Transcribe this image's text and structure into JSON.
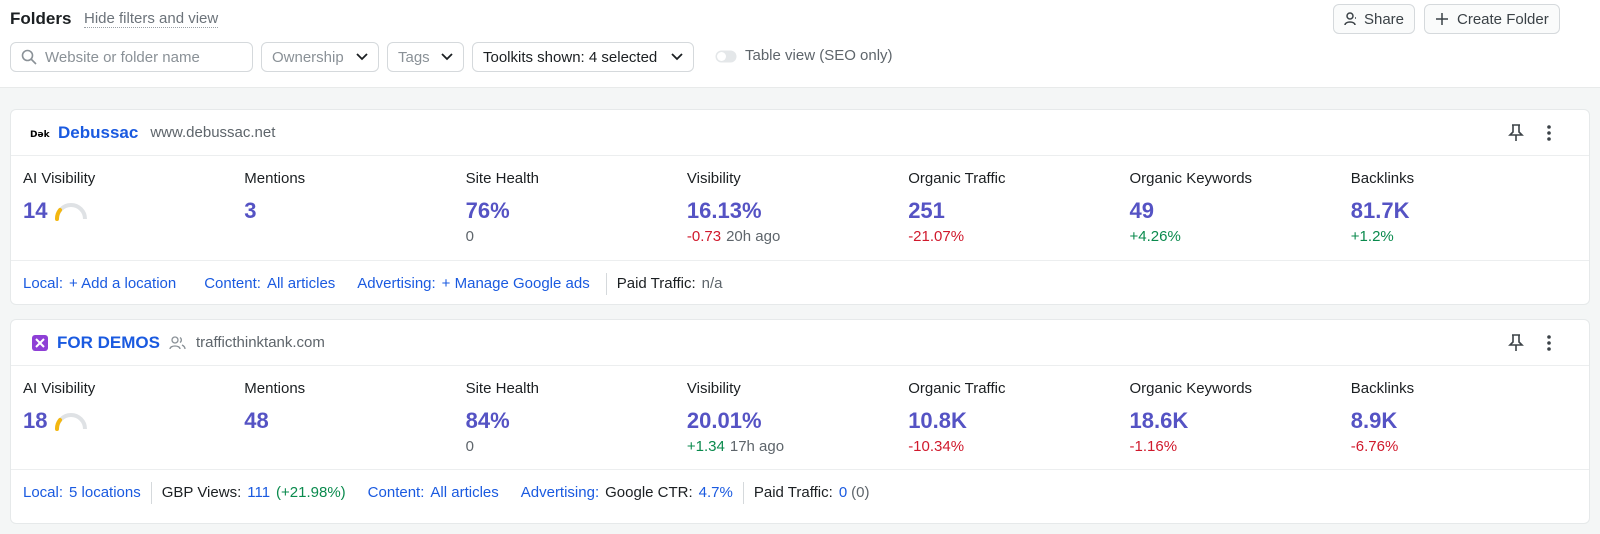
{
  "header": {
    "title": "Folders",
    "toggle_link": "Hide filters and view",
    "share": "Share",
    "create": "Create Folder"
  },
  "filters": {
    "search_placeholder": "Website or folder name",
    "ownership": "Ownership",
    "tags": "Tags",
    "toolkits": "Toolkits shown: 4 selected",
    "table_view": "Table view (SEO only)"
  },
  "folders": [
    {
      "name": "Debussac",
      "domain": "www.debussac.net",
      "metrics": [
        {
          "label": "AI Visibility",
          "value": "14"
        },
        {
          "label": "Mentions",
          "value": "3"
        },
        {
          "label": "Site Health",
          "value": "76%",
          "sub": "0"
        },
        {
          "label": "Visibility",
          "value": "16.13%",
          "change": "-0.73",
          "note": "20h ago"
        },
        {
          "label": "Organic Traffic",
          "value": "251",
          "change": "-21.07%"
        },
        {
          "label": "Organic Keywords",
          "value": "49",
          "change": "+4.26%"
        },
        {
          "label": "Backlinks",
          "value": "81.7K",
          "change": "+1.2%"
        }
      ],
      "footer": {
        "local_label": "Local:",
        "local": "Add a location",
        "content_label": "Content:",
        "content": "All articles",
        "advertising_label": "Advertising:",
        "advertising": "Manage Google ads",
        "paid_label": "Paid Traffic:",
        "paid": "n/a"
      }
    },
    {
      "name": "FOR DEMOS",
      "domain": "trafficthinktank.com",
      "metrics": [
        {
          "label": "AI Visibility",
          "value": "18"
        },
        {
          "label": "Mentions",
          "value": "48"
        },
        {
          "label": "Site Health",
          "value": "84%",
          "sub": "0"
        },
        {
          "label": "Visibility",
          "value": "20.01%",
          "change": "+1.34",
          "note": "17h ago"
        },
        {
          "label": "Organic Traffic",
          "value": "10.8K",
          "change": "-10.34%"
        },
        {
          "label": "Organic Keywords",
          "value": "18.6K",
          "change": "-1.16%"
        },
        {
          "label": "Backlinks",
          "value": "8.9K",
          "change": "-6.76%"
        }
      ],
      "footer": {
        "local_label": "Local:",
        "local": "5 locations",
        "gbp_label": "GBP Views:",
        "gbp": "111",
        "gbp_change": "(+21.98%)",
        "content_label": "Content:",
        "content": "All articles",
        "advertising_label": "Advertising:",
        "ctr_label": "Google CTR:",
        "ctr": "4.7%",
        "paid_label": "Paid Traffic:",
        "paid": "0",
        "paid_change": "(0)"
      }
    }
  ]
}
